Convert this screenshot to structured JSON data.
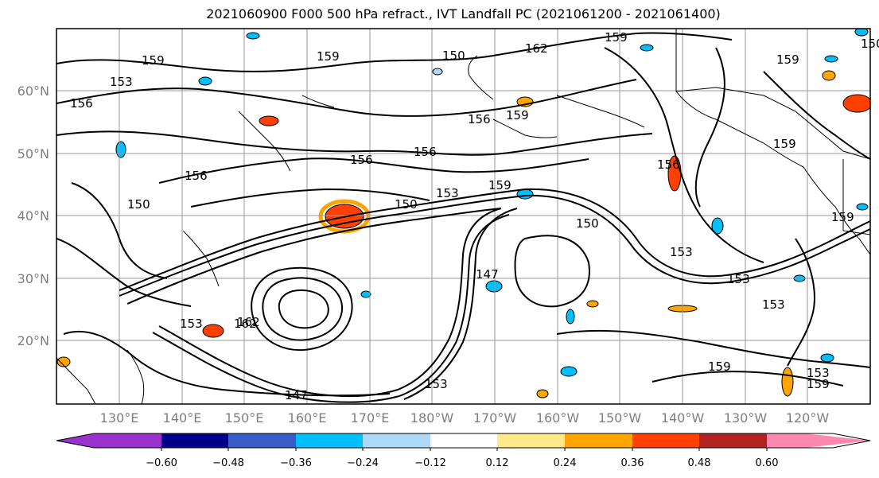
{
  "title": "2021060900 F000 500 hPa refract., IVT Landfall PC (2021061200 - 2021061400)",
  "map": {
    "lat_labels": [
      "60°N",
      "50°N",
      "40°N",
      "30°N",
      "20°N"
    ],
    "lon_labels": [
      "130°E",
      "140°E",
      "150°E",
      "160°E",
      "170°E",
      "180°W",
      "170°W",
      "160°W",
      "150°W",
      "140°W",
      "130°W",
      "120°W"
    ],
    "contour_labels": [
      "159",
      "153",
      "156",
      "150",
      "159",
      "159",
      "150",
      "162",
      "156",
      "159",
      "156",
      "156",
      "150",
      "153",
      "159",
      "159",
      "150",
      "159",
      "147",
      "153",
      "150",
      "156",
      "159",
      "153",
      "153",
      "162",
      "147",
      "153",
      "159",
      "153",
      "159",
      "156",
      "153",
      "162"
    ]
  },
  "colorbar": {
    "ticks": [
      "−0.60",
      "−0.48",
      "−0.36",
      "−0.24",
      "−0.12",
      "0.12",
      "0.24",
      "0.36",
      "0.48",
      "0.60"
    ],
    "colors": [
      "#9932cc",
      "#00008b",
      "#3a5cc8",
      "#00bfff",
      "#add8f7",
      "#ffffff",
      "#ffe98a",
      "#ffa500",
      "#ff4000",
      "#b22222",
      "#ff88b0"
    ]
  },
  "fill_colors": {
    "pos_light": "#ffe98a",
    "pos_med": "#ffa500",
    "pos_strong": "#ff4000",
    "neg_light": "#add8f7",
    "neg_med": "#00bfff"
  },
  "grid_color": "#999999",
  "coast_color": "#000000"
}
